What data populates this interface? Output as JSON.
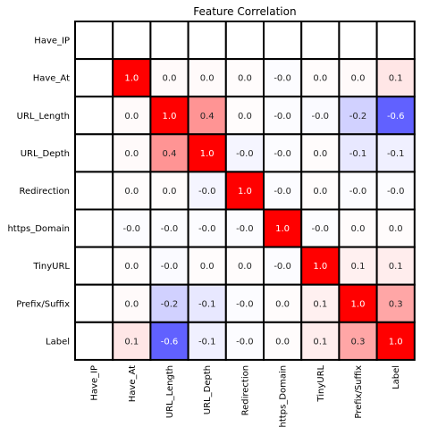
{
  "chart_data": {
    "type": "heatmap",
    "title": "Feature Correlation",
    "xlabel": "",
    "ylabel": "",
    "labels": [
      "Have_IP",
      "Have_At",
      "URL_Length",
      "URL_Depth",
      "Redirection",
      "https_Domain",
      "TinyURL",
      "Prefix/Suffix",
      "Label"
    ],
    "colormap": "bwr",
    "vlim": [
      -1,
      1
    ],
    "grid": true,
    "legend": "none",
    "colors": {
      "negative": "#0000ff",
      "neutral": "#ffffff",
      "positive": "#ff0000",
      "grid": "#000000"
    },
    "values": [
      [
        null,
        null,
        null,
        null,
        null,
        null,
        null,
        null,
        null
      ],
      [
        null,
        "1.0",
        "0.0",
        "0.0",
        "0.0",
        "-0.0",
        "0.0",
        "0.0",
        "0.1"
      ],
      [
        null,
        "0.0",
        "1.0",
        "0.4",
        "0.0",
        "-0.0",
        "-0.0",
        "-0.2",
        "-0.6"
      ],
      [
        null,
        "0.0",
        "0.4",
        "1.0",
        "-0.0",
        "-0.0",
        "0.0",
        "-0.1",
        "-0.1"
      ],
      [
        null,
        "0.0",
        "0.0",
        "-0.0",
        "1.0",
        "-0.0",
        "0.0",
        "-0.0",
        "-0.0"
      ],
      [
        null,
        "-0.0",
        "-0.0",
        "-0.0",
        "-0.0",
        "1.0",
        "-0.0",
        "0.0",
        "0.0"
      ],
      [
        null,
        "0.0",
        "-0.0",
        "0.0",
        "0.0",
        "-0.0",
        "1.0",
        "0.1",
        "0.1"
      ],
      [
        null,
        "0.0",
        "-0.2",
        "-0.1",
        "-0.0",
        "0.0",
        "0.1",
        "1.0",
        "0.3"
      ],
      [
        null,
        "0.1",
        "-0.6",
        "-0.1",
        "-0.0",
        "0.0",
        "0.1",
        "0.3",
        "1.0"
      ]
    ],
    "shade": [
      [
        null,
        null,
        null,
        null,
        null,
        null,
        null,
        null,
        null
      ],
      [
        null,
        1.0,
        0.02,
        0.02,
        0.01,
        -0.01,
        0.01,
        0.02,
        0.1
      ],
      [
        null,
        0.02,
        1.0,
        0.42,
        0.01,
        -0.01,
        -0.02,
        -0.18,
        -0.62
      ],
      [
        null,
        0.02,
        0.42,
        1.0,
        -0.04,
        -0.01,
        0.01,
        -0.09,
        -0.06
      ],
      [
        null,
        0.01,
        0.01,
        -0.04,
        1.0,
        -0.01,
        0.01,
        -0.01,
        -0.01
      ],
      [
        null,
        -0.01,
        -0.01,
        -0.01,
        -0.01,
        1.0,
        -0.01,
        0.01,
        0.01
      ],
      [
        null,
        0.01,
        -0.02,
        0.01,
        0.01,
        -0.01,
        1.0,
        0.06,
        0.07
      ],
      [
        null,
        0.02,
        -0.18,
        -0.09,
        -0.01,
        0.01,
        0.06,
        1.0,
        0.35
      ],
      [
        null,
        0.1,
        -0.62,
        -0.06,
        -0.01,
        0.01,
        0.07,
        0.35,
        1.0
      ]
    ]
  }
}
